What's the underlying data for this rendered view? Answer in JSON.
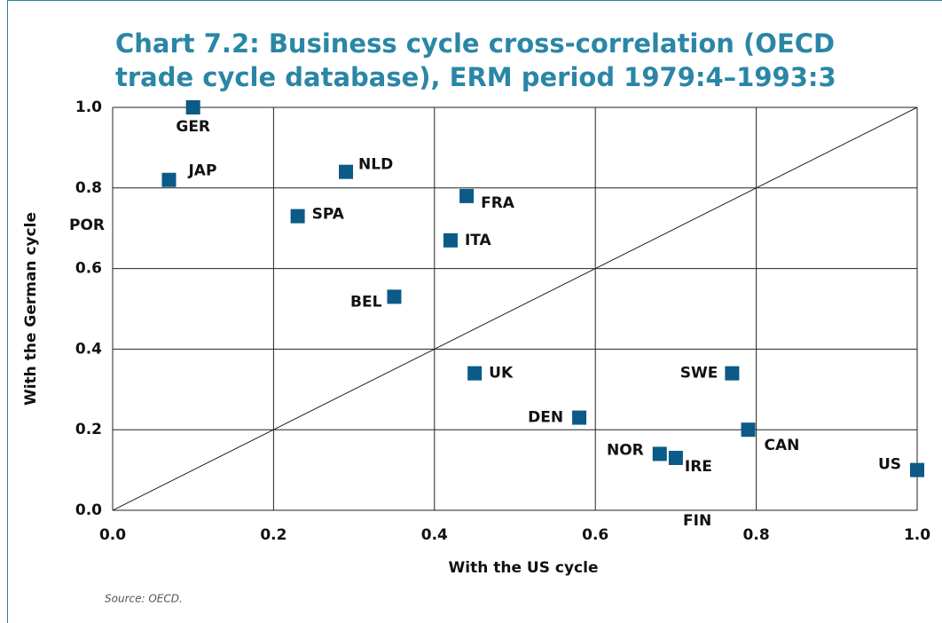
{
  "chart_data": {
    "type": "scatter",
    "title": "Chart 7.2: Business cycle cross-correlation (OECD trade cycle database), ERM period 1979:4–1993:3",
    "x_label": "With the US cycle",
    "y_label": "With the German cycle",
    "source": "Source: OECD.",
    "color": "#0b5a87",
    "labels": [
      "GER",
      "JAP",
      "NLD",
      "SPA",
      "FRA",
      "ITA",
      "BEL",
      "UK",
      "DEN",
      "SWE",
      "CAN",
      "NOR",
      "IRE",
      "US"
    ],
    "x": [
      0.1,
      0.07,
      0.29,
      0.23,
      0.44,
      0.42,
      0.35,
      0.45,
      0.58,
      0.77,
      0.79,
      0.68,
      0.7,
      1.0
    ],
    "values": [
      1.0,
      0.82,
      0.84,
      0.73,
      0.78,
      0.67,
      0.53,
      0.34,
      0.23,
      0.34,
      0.2,
      0.14,
      0.13,
      0.1
    ],
    "annotations": [
      "POR",
      "FIN"
    ],
    "xlim": [
      0,
      1
    ],
    "ylim": [
      0,
      1
    ],
    "xticks": [
      {
        "value": 0,
        "label": "0.0"
      },
      0.2,
      0.4,
      0.6,
      0.8,
      {
        "value": 1,
        "label": "1.0"
      }
    ],
    "yticks": [
      {
        "value": 0,
        "label": "0.0"
      },
      0.2,
      0.4,
      0.6,
      0.8,
      {
        "value": 1,
        "label": "1.0"
      }
    ],
    "grid": true
  }
}
